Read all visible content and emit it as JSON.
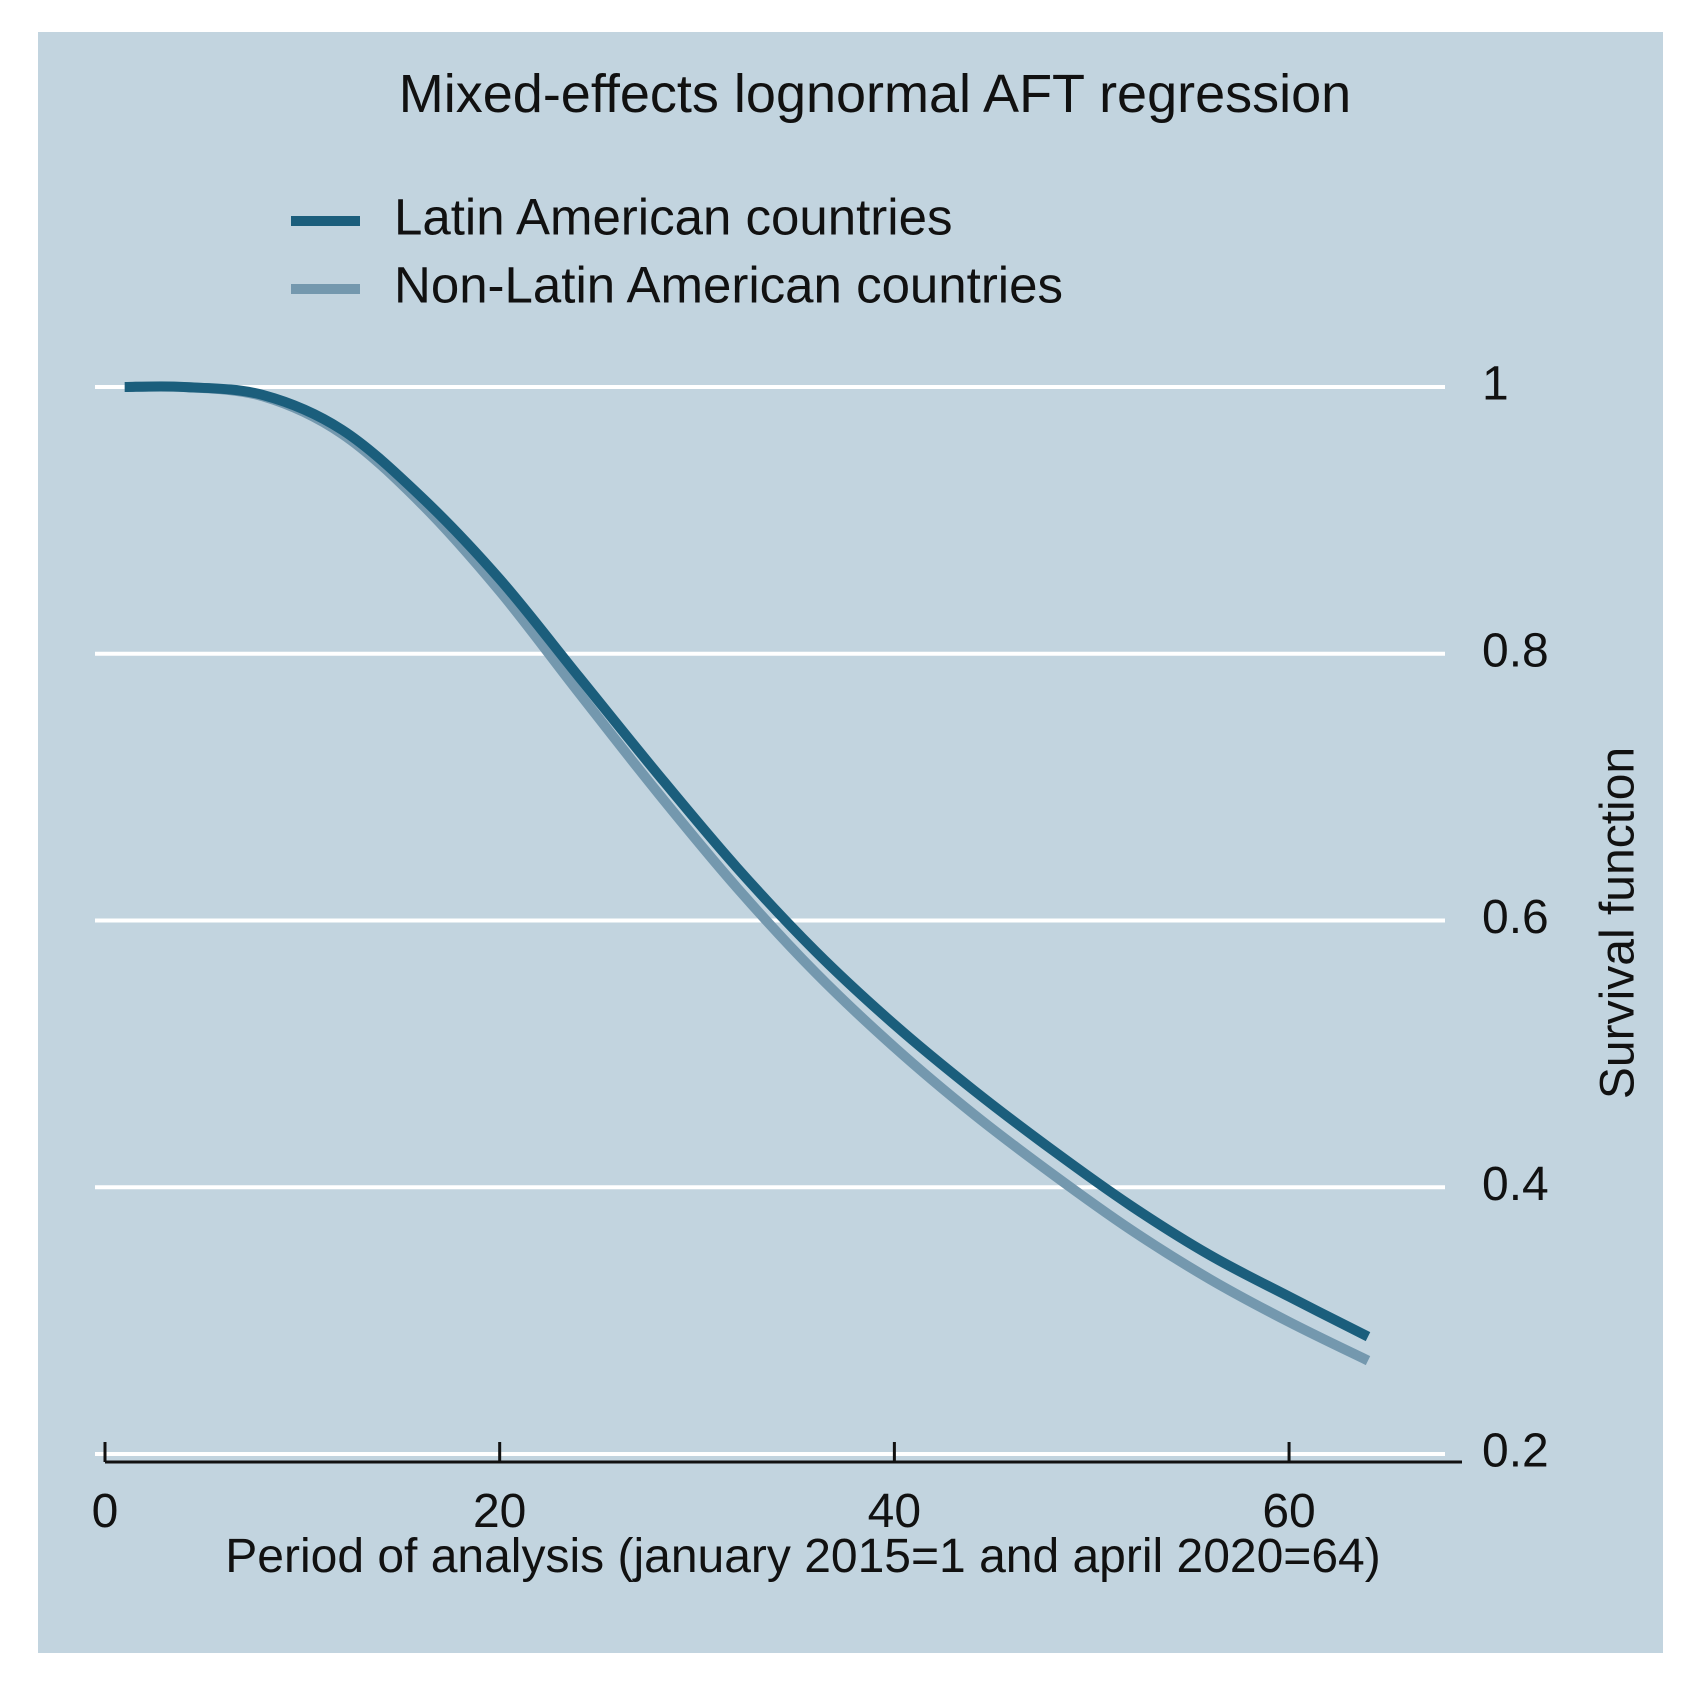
{
  "chart_data": {
    "type": "line",
    "title": "Mixed-effects lognormal AFT regression",
    "xlabel": "Period of analysis (january 2015=1 and april 2020=64)",
    "ylabel": "Survival  function",
    "xlim": [
      0,
      64
    ],
    "ylim": [
      0.2,
      1
    ],
    "xticks": [
      0,
      20,
      40,
      60
    ],
    "xtick_labels": [
      "0",
      "20",
      "40",
      "60"
    ],
    "yticks": [
      0.2,
      0.4,
      0.6,
      0.8,
      1
    ],
    "ytick_labels": [
      "0.2",
      "0.4",
      "0.6",
      "0.8",
      "1"
    ],
    "y_axis_position": "right",
    "grid": "horizontal",
    "legend_position": "top",
    "background_color": "#c2d4df",
    "series": [
      {
        "name": "Latin American countries",
        "color": "#1b5e7c",
        "x": [
          1,
          4,
          8,
          12,
          16,
          20,
          24,
          28,
          32,
          36,
          40,
          44,
          48,
          52,
          56,
          60,
          64
        ],
        "y": [
          1.0,
          1.0,
          0.994,
          0.968,
          0.918,
          0.856,
          0.783,
          0.71,
          0.64,
          0.577,
          0.522,
          0.473,
          0.428,
          0.386,
          0.349,
          0.318,
          0.288
        ]
      },
      {
        "name": "Non-Latin American countries",
        "color": "#7498ae",
        "x": [
          1,
          4,
          8,
          12,
          16,
          20,
          24,
          28,
          32,
          36,
          40,
          44,
          48,
          52,
          56,
          60,
          64
        ],
        "y": [
          1.0,
          1.0,
          0.993,
          0.965,
          0.913,
          0.847,
          0.771,
          0.696,
          0.625,
          0.561,
          0.505,
          0.455,
          0.41,
          0.368,
          0.331,
          0.299,
          0.27
        ]
      }
    ]
  }
}
